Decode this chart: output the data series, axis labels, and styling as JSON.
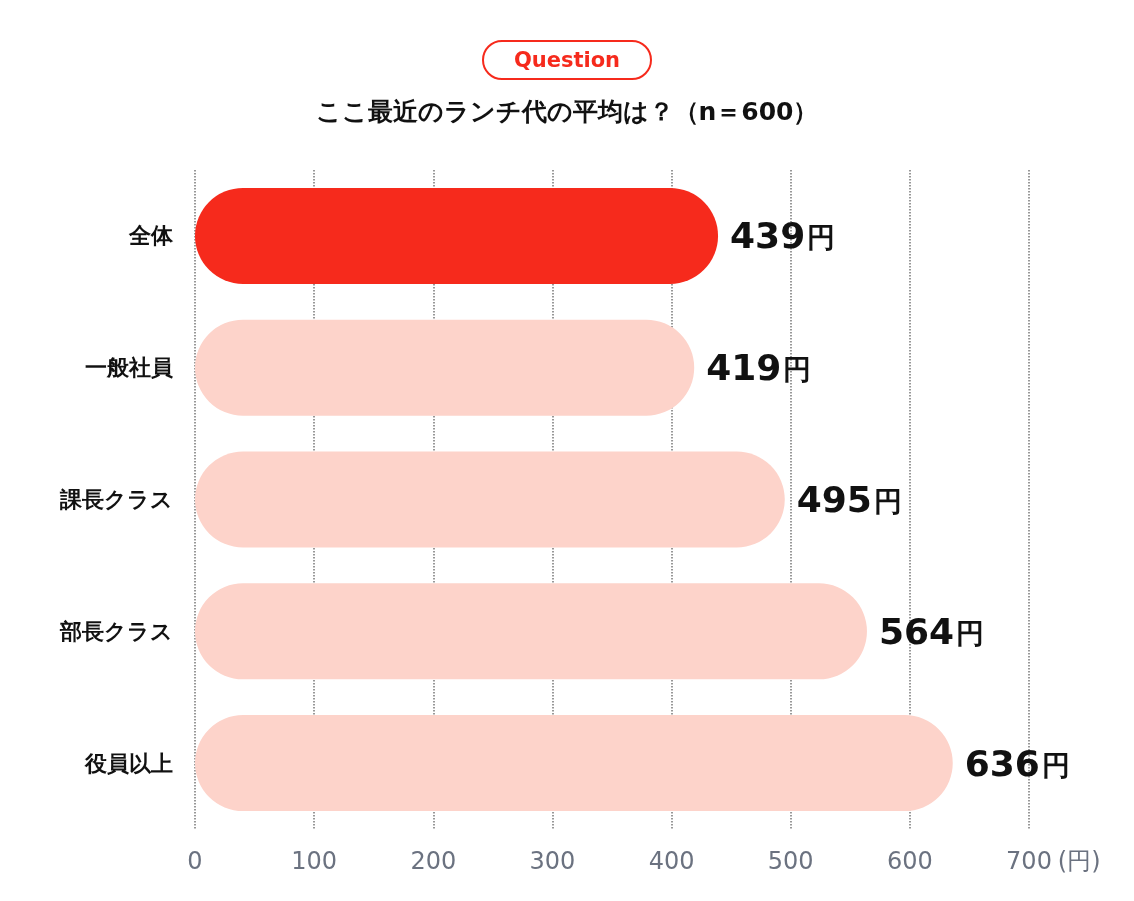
{
  "chart_data": {
    "type": "bar",
    "orientation": "horizontal",
    "title": "ここ最近のランチ代の平均は？（n＝600）",
    "annotations": [
      "Question"
    ],
    "categories": [
      "全体",
      "一般社員",
      "課長クラス",
      "部長クラス",
      "役員以上"
    ],
    "values": [
      439,
      419,
      495,
      564,
      636
    ],
    "colors": [
      "#f62a1c",
      "#fdd3ca",
      "#fdd3ca",
      "#fdd3ca",
      "#fdd3ca"
    ],
    "value_labels": [
      "439円",
      "419円",
      "495円",
      "564円",
      "636円"
    ],
    "xlabel": "(円)",
    "xlim": [
      0,
      700
    ],
    "xticks": [
      0,
      100,
      200,
      300,
      400,
      500,
      600,
      700
    ],
    "grid": "x"
  }
}
